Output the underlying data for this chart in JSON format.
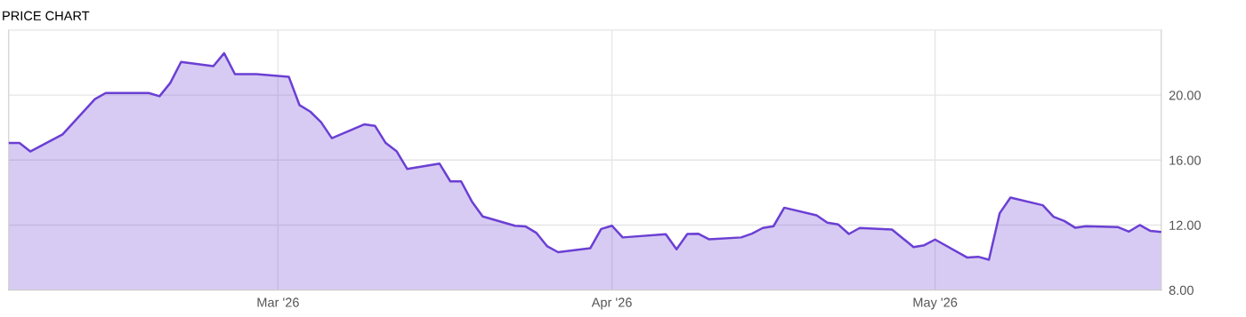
{
  "chart_data": {
    "type": "area",
    "title": "PRICE CHART",
    "x": [
      "2026-02-04",
      "2026-02-05",
      "2026-02-06",
      "2026-02-09",
      "2026-02-12",
      "2026-02-13",
      "2026-02-17",
      "2026-02-18",
      "2026-02-19",
      "2026-02-20",
      "2026-02-23",
      "2026-02-24",
      "2026-02-25",
      "2026-02-27",
      "2026-03-02",
      "2026-03-03",
      "2026-03-04",
      "2026-03-05",
      "2026-03-06",
      "2026-03-09",
      "2026-03-10",
      "2026-03-11",
      "2026-03-12",
      "2026-03-13",
      "2026-03-16",
      "2026-03-17",
      "2026-03-18",
      "2026-03-19",
      "2026-03-20",
      "2026-03-23",
      "2026-03-24",
      "2026-03-25",
      "2026-03-26",
      "2026-03-27",
      "2026-03-30",
      "2026-03-31",
      "2026-04-01",
      "2026-04-02",
      "2026-04-06",
      "2026-04-07",
      "2026-04-08",
      "2026-04-09",
      "2026-04-10",
      "2026-04-13",
      "2026-04-14",
      "2026-04-15",
      "2026-04-16",
      "2026-04-17",
      "2026-04-20",
      "2026-04-21",
      "2026-04-22",
      "2026-04-23",
      "2026-04-24",
      "2026-04-27",
      "2026-04-29",
      "2026-04-30",
      "2026-05-01",
      "2026-05-04",
      "2026-05-05",
      "2026-05-06",
      "2026-05-07",
      "2026-05-08",
      "2026-05-11",
      "2026-05-12",
      "2026-05-13",
      "2026-05-14",
      "2026-05-15",
      "2026-05-18",
      "2026-05-19",
      "2026-05-20",
      "2026-05-21",
      "2026-05-22"
    ],
    "series": [
      {
        "color": "#6b3fd4",
        "values": [
          17.05,
          17.05,
          16.53,
          17.58,
          19.75,
          20.13,
          20.13,
          19.93,
          20.75,
          22.04,
          21.78,
          22.58,
          21.29,
          21.29,
          21.13,
          19.38,
          18.98,
          18.33,
          17.35,
          18.2,
          18.11,
          17.05,
          16.55,
          15.45,
          15.78,
          14.69,
          14.69,
          13.45,
          12.53,
          11.96,
          11.91,
          11.51,
          10.69,
          10.33,
          10.58,
          11.76,
          11.96,
          11.24,
          11.44,
          10.51,
          11.45,
          11.47,
          11.13,
          11.24,
          11.47,
          11.82,
          11.93,
          13.07,
          12.6,
          12.15,
          12.04,
          11.45,
          11.82,
          11.73,
          10.65,
          10.76,
          11.11,
          10.0,
          10.05,
          9.87,
          12.73,
          13.69,
          13.22,
          12.51,
          12.25,
          11.84,
          11.93,
          11.87,
          11.6,
          12.0,
          11.64,
          11.58
        ]
      }
    ],
    "xlim": [
      "2026-02-04",
      "2026-05-22"
    ],
    "xticks": [
      {
        "value": "2026-03-01",
        "label": "Mar '26"
      },
      {
        "value": "2026-04-01",
        "label": "Apr '26"
      },
      {
        "value": "2026-05-01",
        "label": "May '26"
      }
    ],
    "ylim": [
      8,
      24
    ],
    "yticks": [
      {
        "value": 8,
        "label": "8.00"
      },
      {
        "value": 12,
        "label": "12.00"
      },
      {
        "value": 16,
        "label": "16.00"
      },
      {
        "value": 20,
        "label": "20.00"
      }
    ],
    "grid": true,
    "line_style": "solid"
  }
}
